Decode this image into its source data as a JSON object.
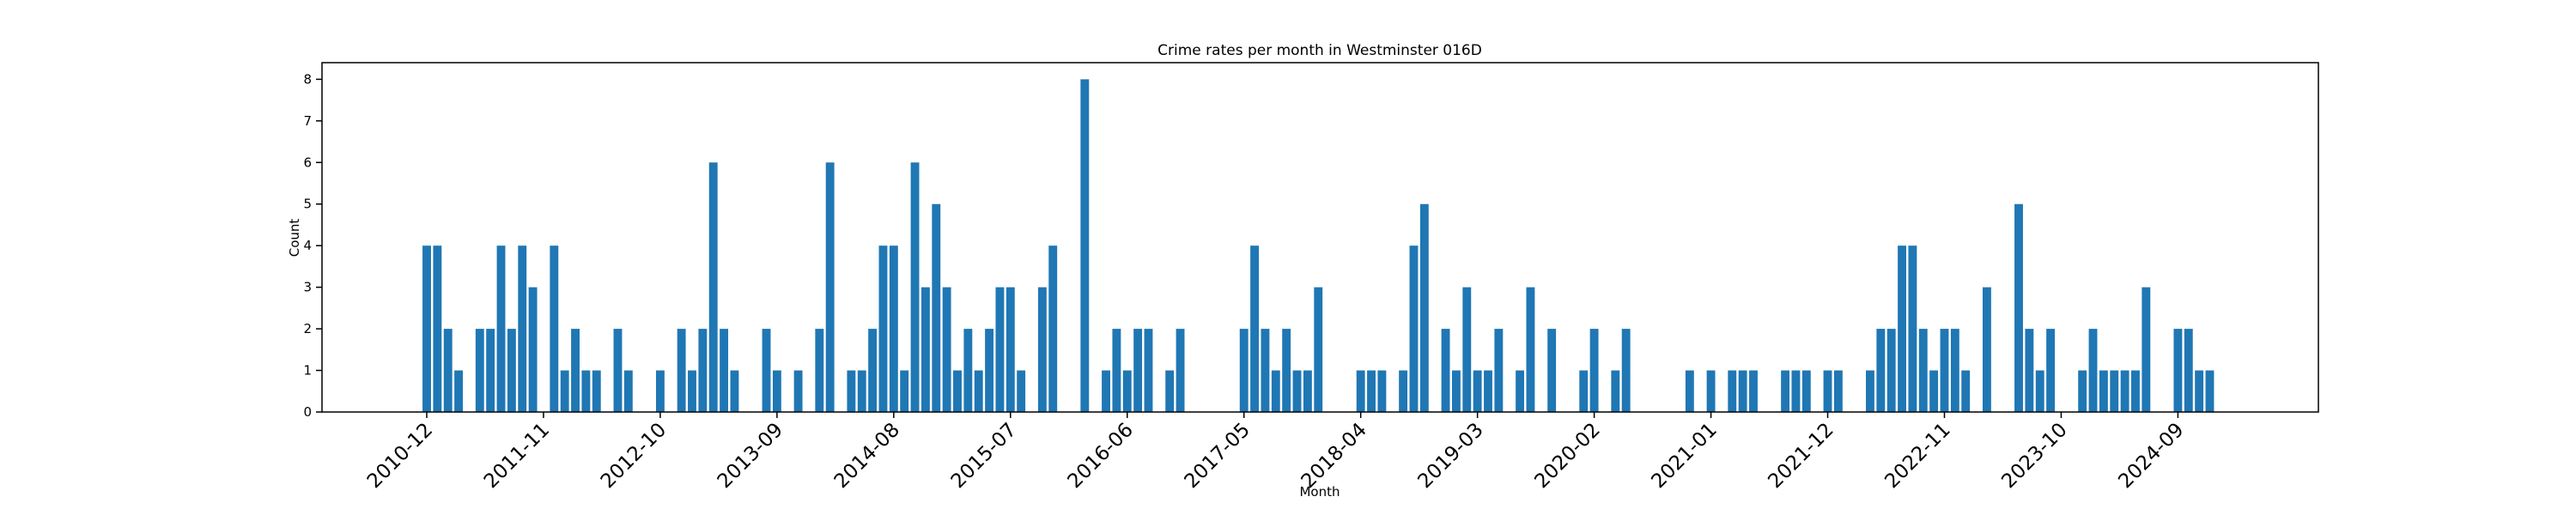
{
  "chart_data": {
    "type": "bar",
    "title": "Crime rates per month in Westminster 016D",
    "x_label": "Month",
    "y_label": "Count",
    "color": "#1f77b4",
    "categories": [
      "2010-12",
      null,
      null,
      null,
      null,
      null,
      null,
      null,
      null,
      null,
      null,
      "2011-11",
      null,
      null,
      null,
      null,
      null,
      null,
      null,
      null,
      null,
      null,
      "2012-10",
      null,
      null,
      null,
      null,
      null,
      null,
      null,
      null,
      null,
      null,
      "2013-09",
      null,
      null,
      null,
      null,
      null,
      null,
      null,
      null,
      null,
      null,
      "2014-08",
      null,
      null,
      null,
      null,
      null,
      null,
      null,
      null,
      null,
      null,
      "2015-07",
      null,
      null,
      null,
      null,
      null,
      null,
      null,
      null,
      null,
      null,
      "2016-06",
      null,
      null,
      null,
      null,
      null,
      null,
      null,
      null,
      null,
      null,
      "2017-05",
      null,
      null,
      null,
      null,
      null,
      null,
      null,
      null,
      null,
      null,
      "2018-04",
      null,
      null,
      null,
      null,
      null,
      null,
      null,
      null,
      null,
      null,
      "2019-03",
      null,
      null,
      null,
      null,
      null,
      null,
      null,
      null,
      null,
      null,
      "2020-02",
      null,
      null,
      null,
      null,
      null,
      null,
      null,
      null,
      null,
      null,
      "2021-01",
      null,
      null,
      null,
      null,
      null,
      null,
      null,
      null,
      null,
      null,
      "2021-12",
      null,
      null,
      null,
      null,
      null,
      null,
      null,
      null,
      null,
      null,
      "2022-11",
      null,
      null,
      null,
      null,
      null,
      null,
      null,
      null,
      null,
      null,
      "2023-10",
      null,
      null,
      null,
      null,
      null,
      null,
      null,
      null,
      null,
      null,
      "2024-09",
      null,
      null,
      null
    ],
    "values": [
      4,
      4,
      2,
      1,
      0,
      2,
      2,
      4,
      2,
      4,
      3,
      0,
      4,
      1,
      2,
      1,
      1,
      0,
      2,
      1,
      0,
      0,
      1,
      0,
      2,
      1,
      2,
      6,
      2,
      1,
      0,
      0,
      2,
      1,
      0,
      1,
      0,
      2,
      6,
      0,
      1,
      1,
      2,
      4,
      4,
      1,
      6,
      3,
      5,
      3,
      1,
      2,
      1,
      2,
      3,
      3,
      1,
      0,
      3,
      4,
      0,
      0,
      8,
      0,
      1,
      2,
      1,
      2,
      2,
      0,
      1,
      2,
      0,
      0,
      0,
      0,
      0,
      2,
      4,
      2,
      1,
      2,
      1,
      1,
      3,
      0,
      0,
      0,
      1,
      1,
      1,
      0,
      1,
      4,
      5,
      0,
      2,
      1,
      3,
      1,
      1,
      2,
      0,
      1,
      3,
      0,
      2,
      0,
      0,
      1,
      2,
      0,
      1,
      2,
      0,
      0,
      0,
      0,
      0,
      1,
      0,
      1,
      0,
      1,
      1,
      1,
      0,
      0,
      1,
      1,
      1,
      0,
      1,
      1,
      0,
      0,
      1,
      2,
      2,
      4,
      4,
      2,
      1,
      2,
      2,
      1,
      0,
      3,
      0,
      0,
      5,
      2,
      1,
      2,
      0,
      0,
      1,
      2,
      1,
      1,
      1,
      1,
      3,
      0,
      0,
      2,
      2,
      1,
      1
    ],
    "ylim": [
      0,
      8.4
    ],
    "yticks": [
      0,
      1,
      2,
      3,
      4,
      5,
      6,
      7,
      8
    ],
    "grid": false
  }
}
